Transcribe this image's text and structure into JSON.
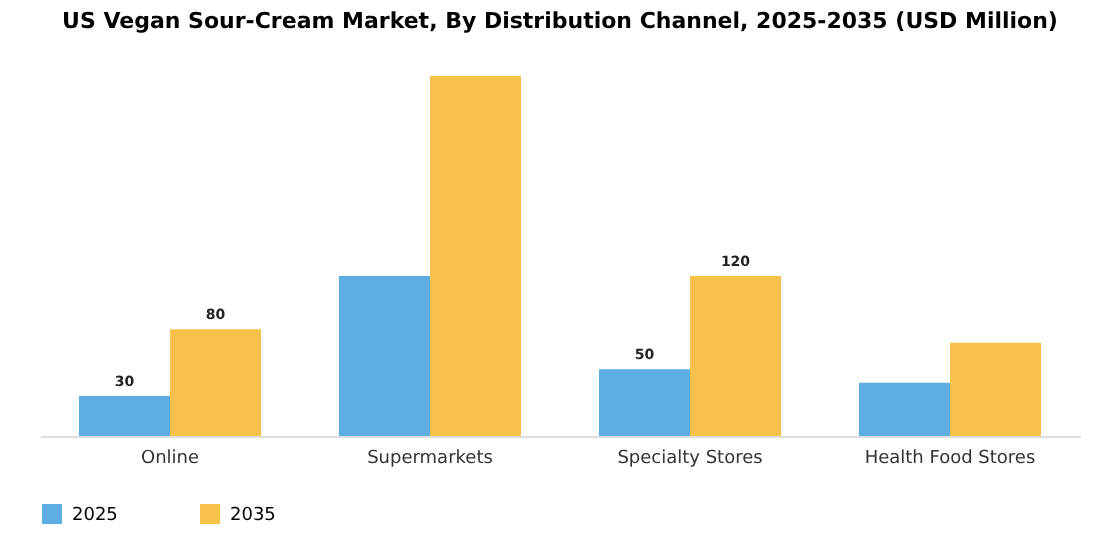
{
  "chart_data": {
    "type": "bar",
    "title": "US Vegan Sour-Cream Market, By Distribution Channel, 2025-2035 (USD Million)",
    "categories": [
      "Online",
      "Supermarkets",
      "Specialty Stores",
      "Health Food Stores"
    ],
    "series": [
      {
        "name": "2025",
        "color": "#5dade2",
        "values": [
          30,
          120,
          50,
          40
        ],
        "value_labels": [
          "30",
          null,
          "50",
          null
        ]
      },
      {
        "name": "2035",
        "color": "#f7c14c",
        "values": [
          80,
          270,
          120,
          70
        ],
        "value_labels": [
          "80",
          null,
          "120",
          null
        ]
      }
    ],
    "legend": "bottom",
    "grid": false
  }
}
